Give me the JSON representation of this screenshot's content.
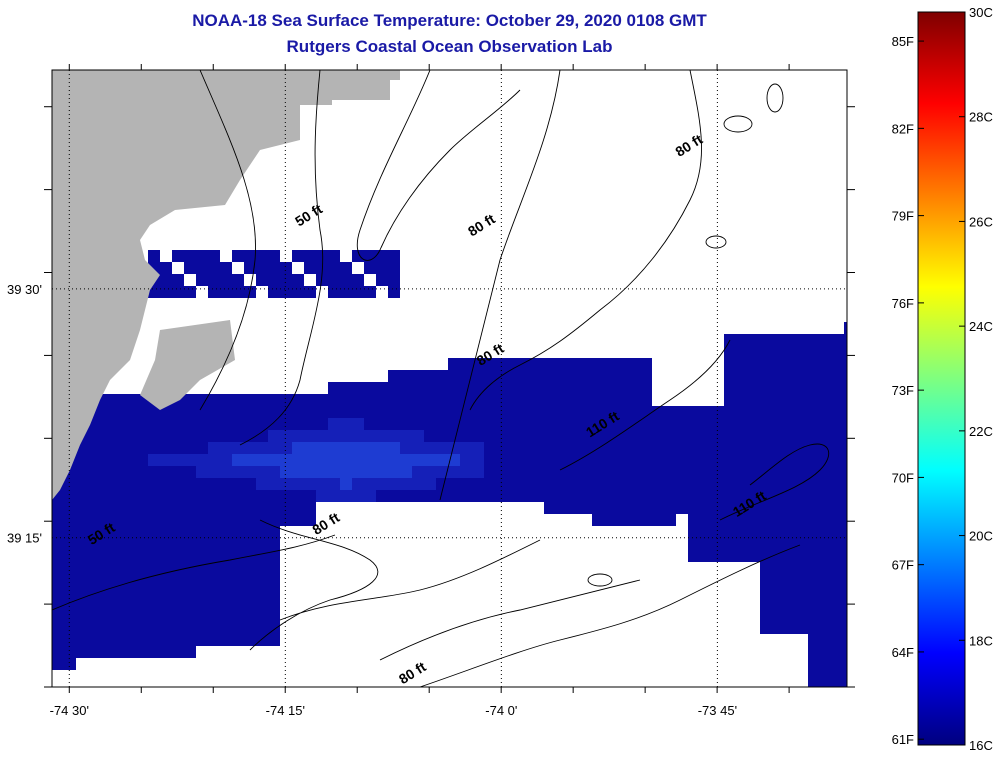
{
  "header": {
    "title": "NOAA-18 Sea Surface Temperature:  October 29, 2020 0108 GMT",
    "subtitle": "Rutgers Coastal Ocean Observation Lab"
  },
  "map": {
    "lon_range": [
      -74.52,
      -73.6
    ],
    "lat_range": [
      39.1,
      39.72
    ],
    "lon_ticks": [
      {
        "value": -74.5,
        "label": "-74 30'"
      },
      {
        "value": -74.25,
        "label": "-74 15'"
      },
      {
        "value": -74.0,
        "label": "-74 0'"
      },
      {
        "value": -73.75,
        "label": "-73 45'"
      }
    ],
    "lat_ticks": [
      {
        "value": 39.5,
        "label": "39 30'"
      },
      {
        "value": 39.25,
        "label": "39 15'"
      }
    ],
    "land_color": "#b4b4b4",
    "nodata_color": "#ffffff",
    "contour_labels": [
      {
        "text": "50 ft",
        "lon": -74.22,
        "lat": 39.57
      },
      {
        "text": "80 ft",
        "lon": -74.02,
        "lat": 39.56
      },
      {
        "text": "80 ft",
        "lon": -73.78,
        "lat": 39.64
      },
      {
        "text": "80 ft",
        "lon": -74.01,
        "lat": 39.43
      },
      {
        "text": "110 ft",
        "lon": -73.88,
        "lat": 39.36
      },
      {
        "text": "110 ft",
        "lon": -73.71,
        "lat": 39.28
      },
      {
        "text": "80 ft",
        "lon": -74.2,
        "lat": 39.26
      },
      {
        "text": "50 ft",
        "lon": -74.46,
        "lat": 39.25
      },
      {
        "text": "80 ft",
        "lon": -74.1,
        "lat": 39.11
      }
    ]
  },
  "colorbar": {
    "min_c": 16,
    "max_c": 30,
    "celsius_labels": [
      "30C",
      "28C",
      "26C",
      "24C",
      "22C",
      "20C",
      "18C",
      "16C"
    ],
    "fahrenheit_labels": [
      "85F",
      "82F",
      "79F",
      "76F",
      "73F",
      "70F",
      "67F",
      "64F",
      "61F"
    ],
    "colors": [
      "#00007f",
      "#0000ff",
      "#007fff",
      "#00ffff",
      "#7fff7f",
      "#ffff00",
      "#ff7f00",
      "#ff0000",
      "#7f0000"
    ]
  },
  "sst_colors": {
    "dark": "#0a0a9e",
    "mid": "#1520b8",
    "light": "#1e3cd2"
  }
}
